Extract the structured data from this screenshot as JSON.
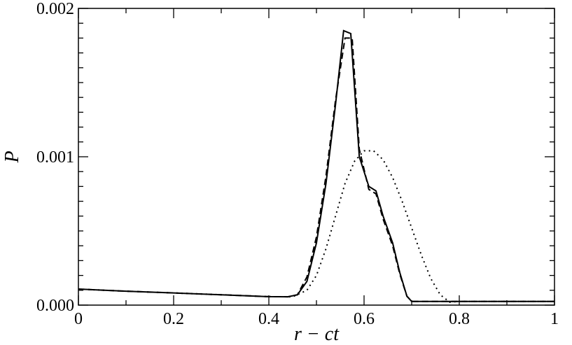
{
  "chart_data": {
    "type": "line",
    "title": "",
    "xlabel": "r − ct",
    "ylabel": "P",
    "xlim": [
      0,
      1
    ],
    "ylim": [
      0,
      0.002
    ],
    "grid": false,
    "legend": "none",
    "x_ticks": [
      "0",
      "0.2",
      "0.4",
      "0.6",
      "0.8",
      "1"
    ],
    "x_tick_values": [
      0,
      0.2,
      0.4,
      0.6,
      0.8,
      1
    ],
    "y_ticks": [
      "0.000",
      "0.001",
      "0.002"
    ],
    "y_tick_values": [
      0,
      0.001,
      0.002
    ],
    "series": [
      {
        "style": "solid",
        "color": "#000000",
        "points": [
          [
            0,
            0.000108
          ],
          [
            0.1,
            9.4e-05
          ],
          [
            0.2,
            8.2e-05
          ],
          [
            0.3,
            7e-05
          ],
          [
            0.4,
            5.7e-05
          ],
          [
            0.44,
            5.6e-05
          ],
          [
            0.46,
            7e-05
          ],
          [
            0.48,
            0.00016
          ],
          [
            0.5,
            0.00042
          ],
          [
            0.52,
            0.00082
          ],
          [
            0.54,
            0.00135
          ],
          [
            0.557,
            0.00185
          ],
          [
            0.572,
            0.00183
          ],
          [
            0.59,
            0.001
          ],
          [
            0.61,
            0.0008
          ],
          [
            0.625,
            0.00077
          ],
          [
            0.64,
            0.0006
          ],
          [
            0.66,
            0.00042
          ],
          [
            0.675,
            0.00022
          ],
          [
            0.69,
            6e-05
          ],
          [
            0.7,
            2.5e-05
          ],
          [
            0.8,
            2.5e-05
          ],
          [
            1,
            2.5e-05
          ]
        ]
      },
      {
        "style": "dashed",
        "color": "#000000",
        "points": [
          [
            0,
            0.000108
          ],
          [
            0.1,
            9.4e-05
          ],
          [
            0.2,
            8.2e-05
          ],
          [
            0.3,
            7e-05
          ],
          [
            0.4,
            5.7e-05
          ],
          [
            0.44,
            5.6e-05
          ],
          [
            0.46,
            7e-05
          ],
          [
            0.48,
            0.00019
          ],
          [
            0.5,
            0.00046
          ],
          [
            0.52,
            0.00087
          ],
          [
            0.54,
            0.00138
          ],
          [
            0.56,
            0.0018
          ],
          [
            0.575,
            0.0018
          ],
          [
            0.59,
            0.00105
          ],
          [
            0.61,
            0.00078
          ],
          [
            0.625,
            0.00075
          ],
          [
            0.64,
            0.00058
          ],
          [
            0.66,
            0.0004
          ],
          [
            0.675,
            0.00021
          ],
          [
            0.69,
            6e-05
          ],
          [
            0.7,
            2.5e-05
          ],
          [
            0.8,
            2.5e-05
          ],
          [
            1,
            2.5e-05
          ]
        ]
      },
      {
        "style": "dotted",
        "color": "#000000",
        "points": [
          [
            0,
            0.000108
          ],
          [
            0.1,
            9.4e-05
          ],
          [
            0.2,
            8.2e-05
          ],
          [
            0.3,
            7e-05
          ],
          [
            0.4,
            5.7e-05
          ],
          [
            0.45,
            5.6e-05
          ],
          [
            0.48,
            0.0001
          ],
          [
            0.5,
            0.0002
          ],
          [
            0.52,
            0.00038
          ],
          [
            0.54,
            0.0006
          ],
          [
            0.56,
            0.00082
          ],
          [
            0.58,
            0.00097
          ],
          [
            0.6,
            0.00104
          ],
          [
            0.62,
            0.00104
          ],
          [
            0.64,
            0.00098
          ],
          [
            0.66,
            0.00086
          ],
          [
            0.68,
            0.0007
          ],
          [
            0.7,
            0.00052
          ],
          [
            0.72,
            0.00034
          ],
          [
            0.74,
            0.00018
          ],
          [
            0.76,
            7e-05
          ],
          [
            0.78,
            2e-05
          ],
          [
            0.8,
            2.5e-05
          ],
          [
            1,
            2.5e-05
          ]
        ]
      }
    ]
  }
}
